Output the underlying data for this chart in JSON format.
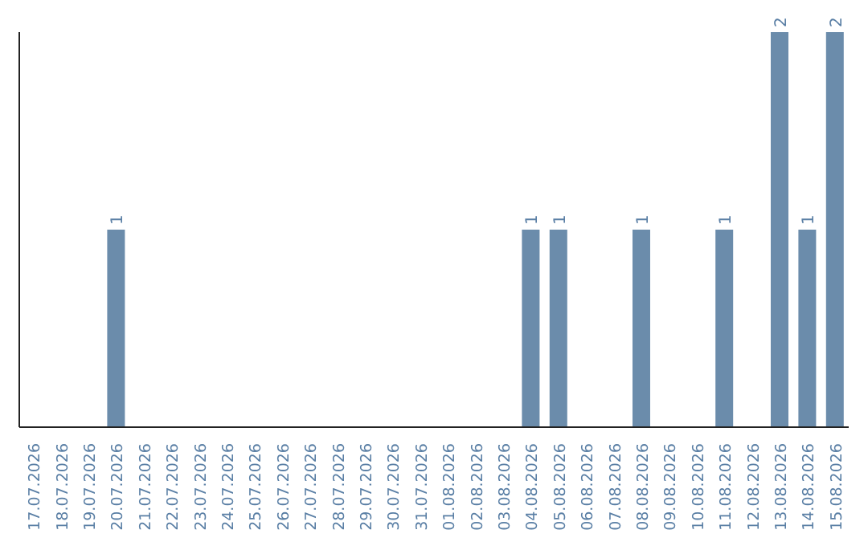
{
  "chart_data": {
    "type": "bar",
    "categories": [
      "17.07.2026",
      "18.07.2026",
      "19.07.2026",
      "20.07.2026",
      "21.07.2026",
      "22.07.2026",
      "23.07.2026",
      "24.07.2026",
      "25.07.2026",
      "26.07.2026",
      "27.07.2026",
      "28.07.2026",
      "29.07.2026",
      "30.07.2026",
      "31.07.2026",
      "01.08.2026",
      "02.08.2026",
      "03.08.2026",
      "04.08.2026",
      "05.08.2026",
      "06.08.2026",
      "07.08.2026",
      "08.08.2026",
      "09.08.2026",
      "10.08.2026",
      "11.08.2026",
      "12.08.2026",
      "13.08.2026",
      "14.08.2026",
      "15.08.2026"
    ],
    "values": [
      0,
      0,
      0,
      1,
      0,
      0,
      0,
      0,
      0,
      0,
      0,
      0,
      0,
      0,
      0,
      0,
      0,
      0,
      1,
      1,
      0,
      0,
      1,
      0,
      0,
      1,
      0,
      2,
      1,
      2
    ],
    "value_labels": [
      null,
      null,
      null,
      "1",
      null,
      null,
      null,
      null,
      null,
      null,
      null,
      null,
      null,
      null,
      null,
      null,
      null,
      null,
      "1",
      "1",
      null,
      null,
      "1",
      null,
      null,
      "1",
      null,
      "2",
      "1",
      "2"
    ],
    "color": "#6b8cab",
    "tick_labels": "x"
  }
}
